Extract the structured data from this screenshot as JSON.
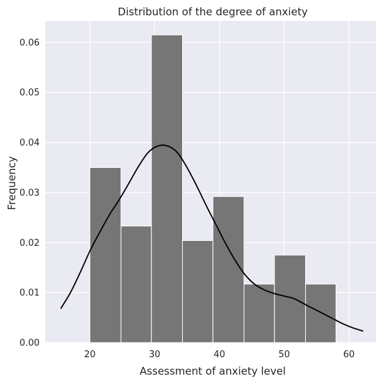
{
  "chart_data": {
    "type": "bar",
    "title": "Distribution of the degree of anxiety",
    "xlabel": "Assessment of anxiety level",
    "ylabel": "Frequency",
    "xlim": [
      13.1,
      64.2
    ],
    "ylim": [
      0,
      0.0643
    ],
    "x_ticks": [
      20,
      30,
      40,
      50,
      60
    ],
    "y_ticks": [
      0.0,
      0.01,
      0.02,
      0.03,
      0.04,
      0.05,
      0.06
    ],
    "x_tick_labels": [
      "20",
      "30",
      "40",
      "50",
      "60"
    ],
    "y_tick_labels": [
      "0.00",
      "0.01",
      "0.02",
      "0.03",
      "0.04",
      "0.05",
      "0.06"
    ],
    "grid": true,
    "bins": [
      {
        "x0": 20.0,
        "x1": 24.8,
        "value": 0.035
      },
      {
        "x0": 24.8,
        "x1": 29.5,
        "value": 0.0233
      },
      {
        "x0": 29.5,
        "x1": 34.3,
        "value": 0.0615
      },
      {
        "x0": 34.3,
        "x1": 39.0,
        "value": 0.0204
      },
      {
        "x0": 39.0,
        "x1": 43.8,
        "value": 0.0292
      },
      {
        "x0": 43.8,
        "x1": 48.5,
        "value": 0.0117
      },
      {
        "x0": 48.5,
        "x1": 53.3,
        "value": 0.0175
      },
      {
        "x0": 53.3,
        "x1": 58.0,
        "value": 0.0117
      }
    ],
    "kde": {
      "x": [
        15.5,
        17.0,
        18.5,
        20.0,
        21.5,
        23.0,
        24.5,
        26.0,
        27.5,
        29.0,
        30.5,
        32.0,
        33.5,
        35.0,
        36.5,
        38.0,
        39.5,
        41.0,
        42.5,
        44.0,
        45.5,
        47.0,
        48.5,
        50.0,
        51.5,
        53.0,
        54.5,
        56.0,
        57.5,
        59.0,
        60.5,
        62.2
      ],
      "y": [
        0.0068,
        0.01,
        0.014,
        0.0183,
        0.022,
        0.0255,
        0.0285,
        0.0318,
        0.0352,
        0.038,
        0.0393,
        0.0393,
        0.038,
        0.035,
        0.0313,
        0.0273,
        0.0235,
        0.0197,
        0.0163,
        0.0135,
        0.0116,
        0.0105,
        0.0098,
        0.0093,
        0.0088,
        0.0078,
        0.0068,
        0.0058,
        0.0048,
        0.0038,
        0.003,
        0.0023
      ]
    },
    "colors": {
      "background": "#eaeaf2",
      "grid": "#ffffff",
      "bar_fill": "#737373",
      "bar_edge": "#ffffff",
      "kde_line": "#000000"
    }
  }
}
